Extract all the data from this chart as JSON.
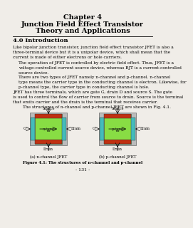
{
  "bg_color": "#f0ede8",
  "title": "Chapter 4",
  "subtitle_line1": "Junction Field Effect Transistor",
  "subtitle_line2": "Theory and Applications",
  "section": "4.0 Introduction",
  "body1": "Like bipolar junction transistor, junction field effect transistor JFET is also a\nthree-terminal device but it is a unipolar device, which shall mean that the\ncurrent is made of either electrons or hole carriers.",
  "body2": "The operation of JFET is controlled by electric field effect. Thus, JFET is a\nvoltage-controlled current source device, whereas BJT is a current-controlled\nsource device.",
  "body3": "There are two types of JFET namely n-channel and p-channel. n-channel\ntype means the carrier type in the conducting channel is electron. Likewise, for\np-channel type, the carrier type in conducting channel is hole.",
  "body4": "JFET has three terminals, which are gate G, drain D and source S. The gate\nis used to control the flow of carrier from source to drain. Source is the terminal\nthat emits carrier and the drain is the terminal that receives carrier.",
  "body5": "The structures of n-channel and p-channel JFET are shown in Fig. 4.1.",
  "fig_caption1": "(a) n-channel JFET",
  "fig_caption2": "(b) p-channel JFET",
  "fig_title": "Figure 4.1: The structures of n-channel and p-channel",
  "page_num": "- 131 -",
  "gate_top_color": "#c03010",
  "gate_bot_color": "#c03010",
  "channel_color": "#88dd44",
  "gate_side_color": "#44bbbb",
  "outer_color": "#bbbbbb"
}
